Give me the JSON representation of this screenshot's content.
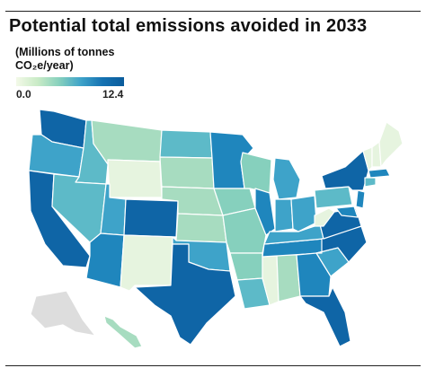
{
  "title": "Potential total emissions avoided in 2033",
  "legend": {
    "title_line1": "(Millions of tonnes",
    "title_line2": "CO₂e/year)",
    "min_label": "0.0",
    "max_label": "12.4",
    "colors": [
      "#f3f9e8",
      "#c9ebc6",
      "#86d0bd",
      "#3ea3c9",
      "#1572b2",
      "#0b5c9c"
    ]
  },
  "map_colors": {
    "very_low": "#e6f4df",
    "low": "#a7dcc0",
    "low_mid": "#86d0bd",
    "mid": "#5dbac8",
    "mid_high": "#3ea3c9",
    "high": "#1f86bd",
    "very_high": "#0f65a6",
    "no_data": "#dddddd"
  }
}
